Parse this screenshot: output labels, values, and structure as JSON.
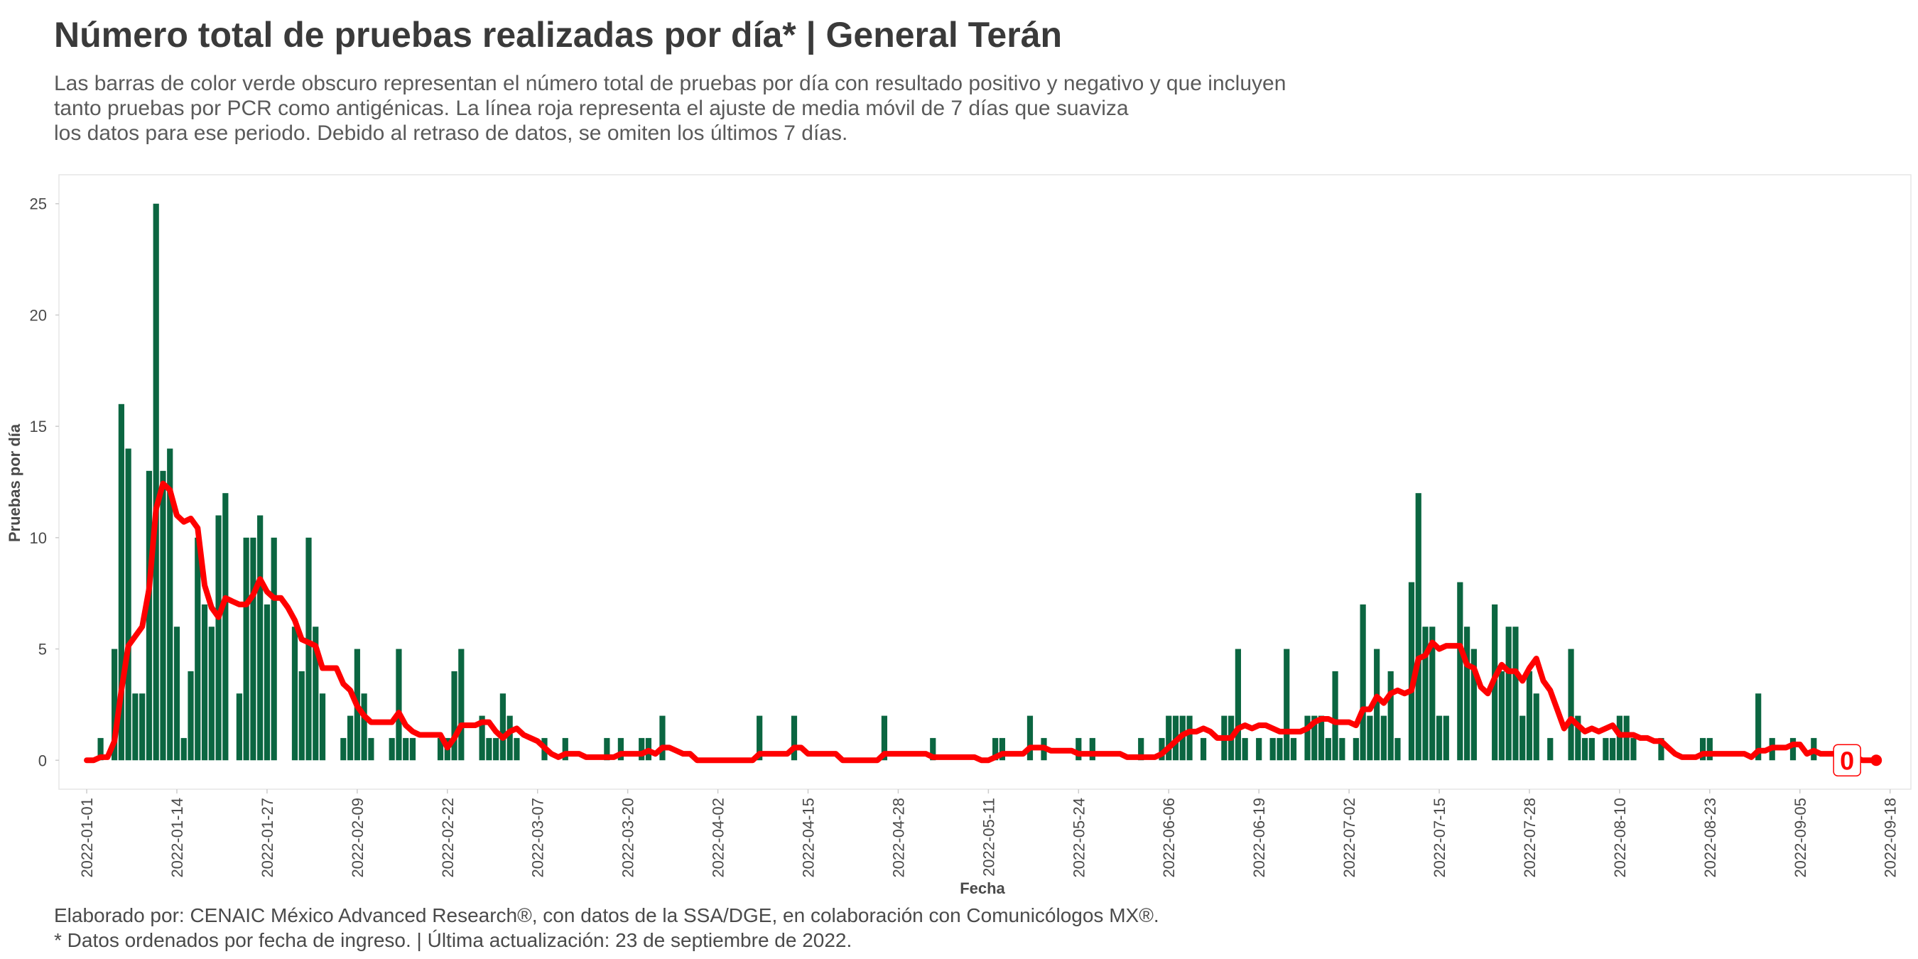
{
  "chart_data": {
    "type": "bar",
    "title": "Número total de pruebas realizadas por día* | General Terán",
    "subtitle": [
      "Las barras de color verde obscuro representan el número total de pruebas por día con resultado positivo y negativo y que incluyen",
      "tanto pruebas por PCR como antigénicas. La línea roja representa el ajuste de media móvil de 7 días que suaviza",
      "los datos para ese periodo. Debido al retraso de datos, se omiten los últimos 7 días."
    ],
    "notes": [
      "Elaborado por: CENAIC México Advanced Research®, con datos de la SSA/DGE, en colaboración con Comunicólogos MX®.",
      "* Datos ordenados por fecha de ingreso. | Última actualización: 23 de septiembre de 2022."
    ],
    "x_label": "Fecha",
    "y_label": "Pruebas por día",
    "grid": false,
    "xlim": [
      "2021-12-28",
      "2022-09-21"
    ],
    "xticks": [
      "2022-01-01",
      "2022-01-14",
      "2022-01-27",
      "2022-02-09",
      "2022-02-22",
      "2022-03-07",
      "2022-03-20",
      "2022-04-02",
      "2022-04-15",
      "2022-04-28",
      "2022-05-11",
      "2022-05-24",
      "2022-06-06",
      "2022-06-19",
      "2022-07-02",
      "2022-07-15",
      "2022-07-28",
      "2022-08-10",
      "2022-08-23",
      "2022-09-05",
      "2022-09-18"
    ],
    "ylim": [
      -1.3,
      26.3
    ],
    "yticks": [
      0,
      5,
      10,
      15,
      20,
      25
    ],
    "x": [
      "2022-01-01",
      "2022-01-02",
      "2022-01-03",
      "2022-01-04",
      "2022-01-05",
      "2022-01-06",
      "2022-01-07",
      "2022-01-08",
      "2022-01-09",
      "2022-01-10",
      "2022-01-11",
      "2022-01-12",
      "2022-01-13",
      "2022-01-14",
      "2022-01-15",
      "2022-01-16",
      "2022-01-17",
      "2022-01-18",
      "2022-01-19",
      "2022-01-20",
      "2022-01-21",
      "2022-01-22",
      "2022-01-23",
      "2022-01-24",
      "2022-01-25",
      "2022-01-26",
      "2022-01-27",
      "2022-01-28",
      "2022-01-29",
      "2022-01-30",
      "2022-01-31",
      "2022-02-01",
      "2022-02-02",
      "2022-02-03",
      "2022-02-04",
      "2022-02-05",
      "2022-02-06",
      "2022-02-07",
      "2022-02-08",
      "2022-02-09",
      "2022-02-10",
      "2022-02-11",
      "2022-02-12",
      "2022-02-13",
      "2022-02-14",
      "2022-02-15",
      "2022-02-16",
      "2022-02-17",
      "2022-02-18",
      "2022-02-19",
      "2022-02-20",
      "2022-02-21",
      "2022-02-22",
      "2022-02-23",
      "2022-02-24",
      "2022-02-25",
      "2022-02-26",
      "2022-02-27",
      "2022-02-28",
      "2022-03-01",
      "2022-03-02",
      "2022-03-03",
      "2022-03-04",
      "2022-03-05",
      "2022-03-06",
      "2022-03-07",
      "2022-03-08",
      "2022-03-09",
      "2022-03-10",
      "2022-03-11",
      "2022-03-12",
      "2022-03-13",
      "2022-03-14",
      "2022-03-15",
      "2022-03-16",
      "2022-03-17",
      "2022-03-18",
      "2022-03-19",
      "2022-03-20",
      "2022-03-21",
      "2022-03-22",
      "2022-03-23",
      "2022-03-24",
      "2022-03-25",
      "2022-03-26",
      "2022-03-27",
      "2022-03-28",
      "2022-03-29",
      "2022-03-30",
      "2022-03-31",
      "2022-04-01",
      "2022-04-02",
      "2022-04-03",
      "2022-04-04",
      "2022-04-05",
      "2022-04-06",
      "2022-04-07",
      "2022-04-08",
      "2022-04-09",
      "2022-04-10",
      "2022-04-11",
      "2022-04-12",
      "2022-04-13",
      "2022-04-14",
      "2022-04-15",
      "2022-04-16",
      "2022-04-17",
      "2022-04-18",
      "2022-04-19",
      "2022-04-20",
      "2022-04-21",
      "2022-04-22",
      "2022-04-23",
      "2022-04-24",
      "2022-04-25",
      "2022-04-26",
      "2022-04-27",
      "2022-04-28",
      "2022-04-29",
      "2022-04-30",
      "2022-05-01",
      "2022-05-02",
      "2022-05-03",
      "2022-05-04",
      "2022-05-05",
      "2022-05-06",
      "2022-05-07",
      "2022-05-08",
      "2022-05-09",
      "2022-05-10",
      "2022-05-11",
      "2022-05-12",
      "2022-05-13",
      "2022-05-14",
      "2022-05-15",
      "2022-05-16",
      "2022-05-17",
      "2022-05-18",
      "2022-05-19",
      "2022-05-20",
      "2022-05-21",
      "2022-05-22",
      "2022-05-23",
      "2022-05-24",
      "2022-05-25",
      "2022-05-26",
      "2022-05-27",
      "2022-05-28",
      "2022-05-29",
      "2022-05-30",
      "2022-05-31",
      "2022-06-01",
      "2022-06-02",
      "2022-06-03",
      "2022-06-04",
      "2022-06-05",
      "2022-06-06",
      "2022-06-07",
      "2022-06-08",
      "2022-06-09",
      "2022-06-10",
      "2022-06-11",
      "2022-06-12",
      "2022-06-13",
      "2022-06-14",
      "2022-06-15",
      "2022-06-16",
      "2022-06-17",
      "2022-06-18",
      "2022-06-19",
      "2022-06-20",
      "2022-06-21",
      "2022-06-22",
      "2022-06-23",
      "2022-06-24",
      "2022-06-25",
      "2022-06-26",
      "2022-06-27",
      "2022-06-28",
      "2022-06-29",
      "2022-06-30",
      "2022-07-01",
      "2022-07-02",
      "2022-07-03",
      "2022-07-04",
      "2022-07-05",
      "2022-07-06",
      "2022-07-07",
      "2022-07-08",
      "2022-07-09",
      "2022-07-10",
      "2022-07-11",
      "2022-07-12",
      "2022-07-13",
      "2022-07-14",
      "2022-07-15",
      "2022-07-16",
      "2022-07-17",
      "2022-07-18",
      "2022-07-19",
      "2022-07-20",
      "2022-07-21",
      "2022-07-22",
      "2022-07-23",
      "2022-07-24",
      "2022-07-25",
      "2022-07-26",
      "2022-07-27",
      "2022-07-28",
      "2022-07-29",
      "2022-07-30",
      "2022-07-31",
      "2022-08-01",
      "2022-08-02",
      "2022-08-03",
      "2022-08-04",
      "2022-08-05",
      "2022-08-06",
      "2022-08-07",
      "2022-08-08",
      "2022-08-09",
      "2022-08-10",
      "2022-08-11",
      "2022-08-12",
      "2022-08-13",
      "2022-08-14",
      "2022-08-15",
      "2022-08-16",
      "2022-08-17",
      "2022-08-18",
      "2022-08-19",
      "2022-08-20",
      "2022-08-21",
      "2022-08-22",
      "2022-08-23",
      "2022-08-24",
      "2022-08-25",
      "2022-08-26",
      "2022-08-27",
      "2022-08-28",
      "2022-08-29",
      "2022-08-30",
      "2022-08-31",
      "2022-09-01",
      "2022-09-02",
      "2022-09-03",
      "2022-09-04",
      "2022-09-05",
      "2022-09-06",
      "2022-09-07",
      "2022-09-08",
      "2022-09-09",
      "2022-09-10",
      "2022-09-11",
      "2022-09-12",
      "2022-09-13",
      "2022-09-14",
      "2022-09-15",
      "2022-09-16"
    ],
    "series": [
      {
        "type": "bar",
        "color": "#0b6641",
        "values": [
          0,
          0,
          1,
          0,
          5,
          16,
          14,
          3,
          3,
          13,
          25,
          13,
          14,
          6,
          1,
          4,
          10,
          7,
          6,
          11,
          12,
          0,
          3,
          10,
          10,
          11,
          7,
          10,
          0,
          0,
          6,
          4,
          10,
          6,
          3,
          0,
          0,
          1,
          2,
          5,
          3,
          1,
          0,
          0,
          1,
          5,
          1,
          1,
          0,
          0,
          0,
          1,
          1,
          4,
          5,
          0,
          0,
          2,
          1,
          1,
          3,
          2,
          1,
          0,
          0,
          0,
          1,
          0,
          0,
          1,
          0,
          0,
          0,
          0,
          0,
          1,
          0,
          1,
          0,
          0,
          1,
          1,
          0,
          2,
          0,
          0,
          0,
          0,
          0,
          0,
          0,
          0,
          0,
          0,
          0,
          0,
          0,
          2,
          0,
          0,
          0,
          0,
          2,
          0,
          0,
          0,
          0,
          0,
          0,
          0,
          0,
          0,
          0,
          0,
          0,
          2,
          0,
          0,
          0,
          0,
          0,
          0,
          1,
          0,
          0,
          0,
          0,
          0,
          0,
          0,
          0,
          1,
          1,
          0,
          0,
          0,
          2,
          0,
          1,
          0,
          0,
          0,
          0,
          1,
          0,
          1,
          0,
          0,
          0,
          0,
          0,
          0,
          1,
          0,
          0,
          1,
          2,
          2,
          2,
          2,
          0,
          1,
          0,
          0,
          2,
          2,
          5,
          1,
          0,
          1,
          0,
          1,
          1,
          5,
          1,
          0,
          2,
          2,
          2,
          1,
          4,
          1,
          0,
          1,
          7,
          2,
          5,
          2,
          4,
          1,
          0,
          8,
          12,
          6,
          6,
          2,
          2,
          0,
          8,
          6,
          5,
          0,
          0,
          7,
          4,
          6,
          6,
          2,
          4,
          3,
          0,
          1,
          0,
          0,
          5,
          2,
          1,
          1,
          0,
          1,
          1,
          2,
          2,
          1,
          0,
          0,
          0,
          1,
          0,
          0,
          0,
          0,
          0,
          1,
          1,
          0,
          0,
          0,
          0,
          0,
          0,
          3,
          0,
          1,
          0,
          0,
          1,
          0,
          0,
          1,
          0,
          0,
          0,
          0,
          0,
          0,
          0,
          0,
          0
        ]
      },
      {
        "type": "line",
        "color": "#ff0000",
        "end_label": "0",
        "values": [
          0,
          0,
          0.14,
          0.14,
          0.86,
          3.14,
          5.14,
          5.57,
          6,
          7.71,
          11.29,
          12.43,
          12.14,
          11,
          10.71,
          10.86,
          10.43,
          7.86,
          6.86,
          6.43,
          7.29,
          7.14,
          7,
          7,
          7.43,
          8.14,
          7.57,
          7.29,
          7.29,
          6.86,
          6.29,
          5.43,
          5.29,
          5.14,
          4.14,
          4.14,
          4.14,
          3.43,
          3.14,
          2.43,
          2,
          1.71,
          1.71,
          1.71,
          1.71,
          2.14,
          1.57,
          1.29,
          1.14,
          1.14,
          1.14,
          1.14,
          0.57,
          1,
          1.57,
          1.57,
          1.57,
          1.71,
          1.71,
          1.29,
          1,
          1.29,
          1.43,
          1.14,
          1,
          0.86,
          0.57,
          0.29,
          0.14,
          0.29,
          0.29,
          0.29,
          0.14,
          0.14,
          0.14,
          0.14,
          0.14,
          0.29,
          0.29,
          0.29,
          0.29,
          0.43,
          0.29,
          0.57,
          0.57,
          0.43,
          0.29,
          0.29,
          0,
          0,
          0,
          0,
          0,
          0,
          0,
          0,
          0,
          0.29,
          0.29,
          0.29,
          0.29,
          0.29,
          0.57,
          0.57,
          0.29,
          0.29,
          0.29,
          0.29,
          0.29,
          0,
          0,
          0,
          0,
          0,
          0,
          0.29,
          0.29,
          0.29,
          0.29,
          0.29,
          0.29,
          0.29,
          0.14,
          0.14,
          0.14,
          0.14,
          0.14,
          0.14,
          0.14,
          0,
          0,
          0.14,
          0.29,
          0.29,
          0.29,
          0.29,
          0.57,
          0.57,
          0.57,
          0.43,
          0.43,
          0.43,
          0.43,
          0.29,
          0.29,
          0.29,
          0.29,
          0.29,
          0.29,
          0.29,
          0.14,
          0.14,
          0.14,
          0.14,
          0.14,
          0.29,
          0.57,
          0.86,
          1.14,
          1.29,
          1.29,
          1.43,
          1.29,
          1,
          1,
          1,
          1.43,
          1.57,
          1.43,
          1.57,
          1.57,
          1.43,
          1.29,
          1.29,
          1.29,
          1.29,
          1.43,
          1.71,
          1.86,
          1.86,
          1.71,
          1.71,
          1.71,
          1.57,
          2.29,
          2.29,
          2.86,
          2.57,
          3,
          3.14,
          3,
          3.14,
          4.57,
          4.71,
          5.29,
          5,
          5.14,
          5.14,
          5.14,
          4.29,
          4.14,
          3.29,
          3,
          3.71,
          4.29,
          4,
          4,
          3.57,
          4.14,
          4.57,
          3.57,
          3.14,
          2.29,
          1.43,
          1.86,
          1.57,
          1.29,
          1.43,
          1.29,
          1.43,
          1.57,
          1.14,
          1.14,
          1.14,
          1,
          1,
          0.86,
          0.86,
          0.57,
          0.29,
          0.14,
          0.14,
          0.14,
          0.29,
          0.29,
          0.29,
          0.29,
          0.29,
          0.29,
          0.29,
          0.14,
          0.43,
          0.43,
          0.57,
          0.57,
          0.57,
          0.71,
          0.71,
          0.29,
          0.43,
          0.29,
          0.29,
          0.29,
          0.14,
          0.14,
          0.14,
          0,
          0,
          0
        ]
      }
    ]
  }
}
